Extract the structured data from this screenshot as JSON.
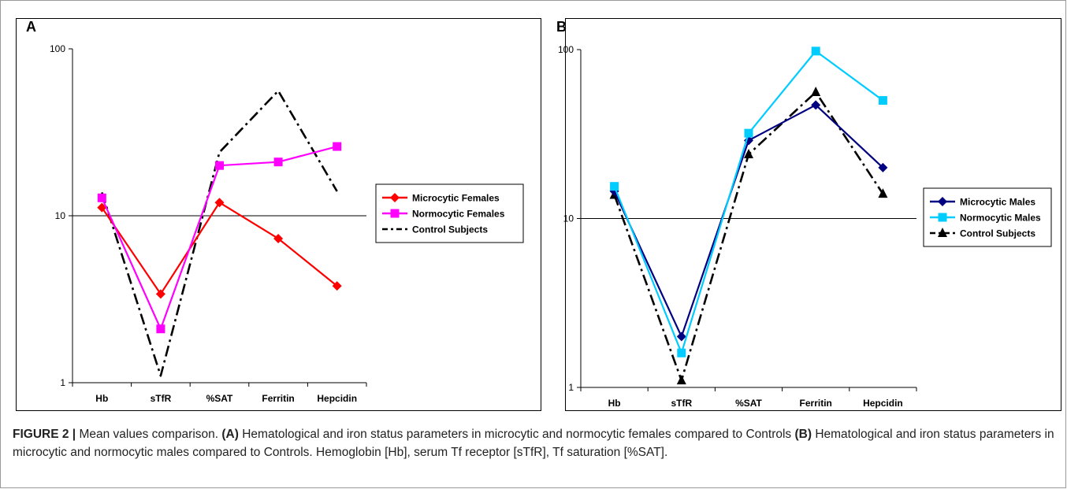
{
  "figure": {
    "panels": [
      "A",
      "B"
    ],
    "caption": {
      "figure_label": "FIGURE 2 |",
      "intro": "Mean values comparison.",
      "a_label": "(A)",
      "a_text": "Hematological and iron status parameters in microcytic and normocytic females compared to Controls",
      "b_label": "(B)",
      "b_text": "Hematological and iron status parameters in microcytic and normocytic males compared to Controls. Hemoglobin [Hb], serum Tf receptor [sTfR], Tf saturation [%SAT]."
    }
  },
  "chart_data": [
    {
      "type": "line",
      "panel": "A",
      "y_scale": "log",
      "ylim": [
        1,
        100
      ],
      "y_ticks": [
        "1",
        "10",
        "100"
      ],
      "categories": [
        "Hb",
        "sTfR",
        "%SAT",
        "Ferritin",
        "Hepcidin"
      ],
      "reference_line": 10,
      "legend_position": "right",
      "series": [
        {
          "name": "Microcytic Females",
          "color": "#ff0000",
          "marker": "diamond",
          "dash": "solid",
          "values": [
            11.2,
            3.4,
            12.0,
            7.3,
            3.8
          ]
        },
        {
          "name": "Normocytic Females",
          "color": "#ff00ff",
          "marker": "square",
          "dash": "solid",
          "values": [
            12.8,
            2.1,
            20.0,
            21.0,
            26.0
          ]
        },
        {
          "name": "Control Subjects",
          "color": "#000000",
          "marker": "none",
          "dash": "dashdot",
          "values": [
            13.8,
            1.1,
            24.0,
            56.0,
            14.0
          ]
        }
      ]
    },
    {
      "type": "line",
      "panel": "B",
      "y_scale": "log",
      "ylim": [
        1,
        100
      ],
      "y_ticks": [
        "1",
        "10",
        "100"
      ],
      "categories": [
        "Hb",
        "sTfR",
        "%SAT",
        "Ferritin",
        "Hepcidin"
      ],
      "reference_line": 10,
      "legend_position": "right",
      "series": [
        {
          "name": "Microcytic Males",
          "color": "#000080",
          "marker": "diamond",
          "dash": "solid",
          "values": [
            14.5,
            2.0,
            29.0,
            47.0,
            20.0
          ]
        },
        {
          "name": "Normocytic Males",
          "color": "#00ccff",
          "marker": "square",
          "dash": "solid",
          "values": [
            15.5,
            1.6,
            32.0,
            98.0,
            50.0
          ]
        },
        {
          "name": "Control Subjects",
          "color": "#000000",
          "marker": "triangle",
          "dash": "dashdot",
          "values": [
            13.8,
            1.1,
            24.0,
            56.0,
            14.0
          ]
        }
      ]
    }
  ]
}
